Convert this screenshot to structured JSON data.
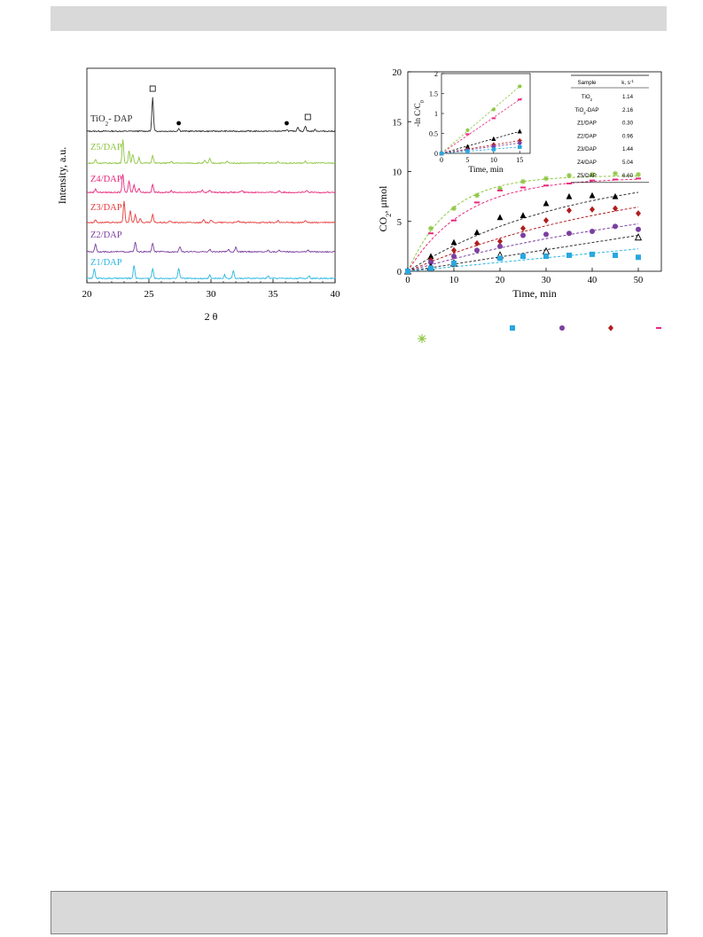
{
  "xrd": {
    "xlabel": "2 θ",
    "ylabel": "Intensity, a.u.",
    "xlim": [
      20,
      40
    ],
    "xticks": [
      "20",
      "25",
      "30",
      "35",
      "40"
    ],
    "peak_markers": [
      {
        "x": 25.3,
        "symbol": "open-square"
      },
      {
        "x": 27.4,
        "symbol": "filled-circle"
      },
      {
        "x": 36.1,
        "symbol": "filled-circle"
      },
      {
        "x": 37.8,
        "symbol": "open-square"
      }
    ],
    "traces": [
      {
        "label": "TiO",
        "label_sub": "2",
        "label_rest": "- DAP",
        "color": "#2b2b2b",
        "peaks": [
          [
            25.3,
            38
          ],
          [
            27.4,
            3
          ],
          [
            36.1,
            2
          ],
          [
            37.0,
            5
          ],
          [
            37.6,
            6
          ],
          [
            38.4,
            2
          ]
        ]
      },
      {
        "label": "Z5/DAP",
        "label_sub": "",
        "label_rest": "",
        "color": "#8cc63f",
        "peaks": [
          [
            20.7,
            4
          ],
          [
            22.9,
            26
          ],
          [
            23.4,
            14
          ],
          [
            23.7,
            10
          ],
          [
            24.2,
            6
          ],
          [
            25.3,
            9
          ],
          [
            26.8,
            2
          ],
          [
            29.5,
            3
          ],
          [
            29.9,
            5
          ],
          [
            31.3,
            2
          ],
          [
            35.4,
            2
          ],
          [
            37.6,
            2
          ]
        ]
      },
      {
        "label": "Z4/DAP",
        "label_sub": "",
        "label_rest": "",
        "color": "#e8287d",
        "peaks": [
          [
            20.7,
            4
          ],
          [
            22.9,
            21
          ],
          [
            23.4,
            13
          ],
          [
            23.8,
            9
          ],
          [
            24.2,
            5
          ],
          [
            25.3,
            9
          ],
          [
            26.8,
            2
          ],
          [
            29.3,
            3
          ],
          [
            29.9,
            3
          ],
          [
            32.5,
            2
          ],
          [
            35.5,
            2
          ],
          [
            37.7,
            2
          ]
        ]
      },
      {
        "label": "Z3/DAP",
        "label_sub": "",
        "label_rest": "",
        "color": "#e83a3a",
        "peaks": [
          [
            20.7,
            3
          ],
          [
            23.0,
            24
          ],
          [
            23.5,
            13
          ],
          [
            23.9,
            9
          ],
          [
            24.3,
            5
          ],
          [
            25.3,
            9
          ],
          [
            26.7,
            2
          ],
          [
            29.4,
            3
          ],
          [
            30.0,
            3
          ],
          [
            32.2,
            2
          ],
          [
            35.4,
            2
          ],
          [
            37.6,
            2
          ]
        ]
      },
      {
        "label": "Z2/DAP",
        "label_sub": "",
        "label_rest": "",
        "color": "#7b3fa0",
        "peaks": [
          [
            20.7,
            9
          ],
          [
            23.9,
            11
          ],
          [
            25.3,
            10
          ],
          [
            27.5,
            6
          ],
          [
            29.9,
            3
          ],
          [
            31.4,
            3
          ],
          [
            32.0,
            5
          ],
          [
            34.6,
            2
          ],
          [
            35.5,
            2
          ],
          [
            37.8,
            2
          ]
        ]
      },
      {
        "label": "Z1/DAP",
        "label_sub": "",
        "label_rest": "",
        "color": "#29b6e0",
        "peaks": [
          [
            20.6,
            11
          ],
          [
            23.8,
            15
          ],
          [
            25.3,
            11
          ],
          [
            27.4,
            11
          ],
          [
            29.9,
            4
          ],
          [
            31.1,
            4
          ],
          [
            31.8,
            9
          ],
          [
            34.6,
            3
          ],
          [
            37.9,
            3
          ]
        ]
      }
    ]
  },
  "kinetics": {
    "xlabel": "Time, min",
    "ylabel_main": "CO",
    "ylabel_sub": "2",
    "ylabel_rest": ", μmol",
    "xlim": [
      0,
      55
    ],
    "ylim": [
      0,
      20
    ],
    "xticks": [
      0,
      10,
      20,
      30,
      40,
      50
    ],
    "yticks": [
      0,
      5,
      10,
      15,
      20
    ],
    "series": [
      {
        "marker": "asterisk",
        "color": "#8cc63f",
        "fit": "#8cc63f",
        "x": [
          0,
          5,
          10,
          15,
          20,
          25,
          30,
          35,
          40,
          45,
          50
        ],
        "y": [
          0,
          4.3,
          6.3,
          7.6,
          8.3,
          9.0,
          9.3,
          9.6,
          9.7,
          9.8,
          9.7
        ]
      },
      {
        "marker": "dash",
        "color": "#e8287d",
        "fit": "#e8287d",
        "x": [
          0,
          5,
          10,
          15,
          20,
          25,
          30,
          35,
          40,
          45,
          50
        ],
        "y": [
          0,
          3.8,
          5.1,
          6.9,
          8.1,
          8.4,
          8.6,
          8.8,
          9.1,
          9.2,
          9.3
        ]
      },
      {
        "marker": "filled-triangle",
        "color": "#000000",
        "fit": "#333333",
        "x": [
          0,
          5,
          10,
          15,
          20,
          25,
          30,
          35,
          40,
          45
        ],
        "y": [
          0,
          1.5,
          2.9,
          3.9,
          5.4,
          5.6,
          6.8,
          7.5,
          7.6,
          7.5
        ]
      },
      {
        "marker": "diamond",
        "color": "#b01e1e",
        "fit": "#b01e1e",
        "x": [
          0,
          5,
          10,
          15,
          20,
          25,
          30,
          35,
          40,
          45,
          50
        ],
        "y": [
          0,
          1.1,
          2.1,
          2.8,
          3.0,
          4.3,
          5.1,
          6.1,
          6.2,
          6.3,
          5.8
        ]
      },
      {
        "marker": "circle",
        "color": "#7b3fa0",
        "fit": "#7b3fa0",
        "x": [
          0,
          5,
          10,
          15,
          20,
          25,
          30,
          35,
          40,
          45,
          50
        ],
        "y": [
          0,
          0.9,
          1.5,
          2.1,
          2.5,
          3.6,
          3.7,
          3.8,
          4.0,
          4.5,
          4.2
        ]
      },
      {
        "marker": "open-triangle",
        "color": "#000000",
        "fit": "#333333",
        "x": [
          0,
          5,
          10,
          20,
          30,
          50
        ],
        "y": [
          0,
          0.4,
          0.8,
          1.6,
          2.0,
          3.4
        ]
      },
      {
        "marker": "square",
        "color": "#29a8e0",
        "fit": "#29b6e0",
        "x": [
          0,
          5,
          10,
          20,
          25,
          30,
          35,
          40,
          45,
          50
        ],
        "y": [
          0,
          0.3,
          0.8,
          1.3,
          1.5,
          1.5,
          1.6,
          1.7,
          1.6,
          1.4
        ]
      }
    ],
    "fits": [
      {
        "color": "#8cc63f",
        "type": "exp",
        "a": 9.6,
        "k": 0.11
      },
      {
        "color": "#e8287d",
        "type": "exp",
        "a": 9.4,
        "k": 0.08
      },
      {
        "color": "#333333",
        "type": "exp",
        "a": 10.5,
        "k": 0.028
      },
      {
        "color": "#b01e1e",
        "type": "exp",
        "a": 10.5,
        "k": 0.019
      },
      {
        "color": "#7b3fa0",
        "type": "exp",
        "a": 9.0,
        "k": 0.015
      },
      {
        "color": "#333333",
        "type": "lin",
        "slope": 0.072
      },
      {
        "color": "#29b6e0",
        "type": "lin",
        "slope": 0.045
      }
    ],
    "inset": {
      "xlabel": "Time, min",
      "ylabel": "-ln C/C",
      "ylabel_sub": "0",
      "xlim": [
        0,
        17
      ],
      "ylim": [
        0,
        2
      ],
      "xticks": [
        0,
        5,
        10,
        15
      ],
      "yticks": [
        "0",
        "0.5",
        "1",
        "1.5",
        "2"
      ],
      "series": [
        {
          "marker": "asterisk",
          "color": "#8cc63f",
          "x": [
            0,
            5,
            10,
            15
          ],
          "y": [
            0,
            0.58,
            1.1,
            1.68
          ]
        },
        {
          "marker": "dash",
          "color": "#e8287d",
          "x": [
            0,
            5,
            10,
            15
          ],
          "y": [
            0,
            0.48,
            0.88,
            1.35
          ]
        },
        {
          "marker": "filled-triangle",
          "color": "#000000",
          "x": [
            0,
            5,
            10,
            15
          ],
          "y": [
            0,
            0.17,
            0.36,
            0.55
          ]
        },
        {
          "marker": "diamond",
          "color": "#b01e1e",
          "x": [
            0,
            5,
            10,
            15
          ],
          "y": [
            0,
            0.1,
            0.22,
            0.32
          ]
        },
        {
          "marker": "circle",
          "color": "#7b3fa0",
          "x": [
            0,
            5,
            10,
            15
          ],
          "y": [
            0,
            0.08,
            0.17,
            0.26
          ]
        },
        {
          "marker": "square",
          "color": "#29a8e0",
          "x": [
            0,
            5,
            10,
            15
          ],
          "y": [
            0,
            0.05,
            0.1,
            0.16
          ]
        }
      ]
    },
    "table": {
      "header": [
        "Sample",
        "k, s",
        "-1"
      ],
      "rows": [
        {
          "sample": "TiO",
          "sub": "2",
          "rest": "",
          "k": "1.14"
        },
        {
          "sample": "TiO",
          "sub": "2",
          "rest": "-DAP",
          "k": "2.16"
        },
        {
          "sample": "Z1/DAP",
          "sub": "",
          "rest": "",
          "k": "0.30"
        },
        {
          "sample": "Z2/DAP",
          "sub": "",
          "rest": "",
          "k": "0.96"
        },
        {
          "sample": "Z3/DAP",
          "sub": "",
          "rest": "",
          "k": "1.44"
        },
        {
          "sample": "Z4/DAP",
          "sub": "",
          "rest": "",
          "k": "5.04"
        },
        {
          "sample": "Z5/DAP",
          "sub": "",
          "rest": "",
          "k": "6.60"
        }
      ]
    },
    "legend_markers": [
      {
        "marker": "square",
        "color": "#29a8e0"
      },
      {
        "marker": "circle",
        "color": "#7b3fa0"
      },
      {
        "marker": "diamond",
        "color": "#b01e1e"
      },
      {
        "marker": "dash",
        "color": "#e8287d"
      },
      {
        "marker": "asterisk",
        "color": "#8cc63f"
      }
    ]
  }
}
